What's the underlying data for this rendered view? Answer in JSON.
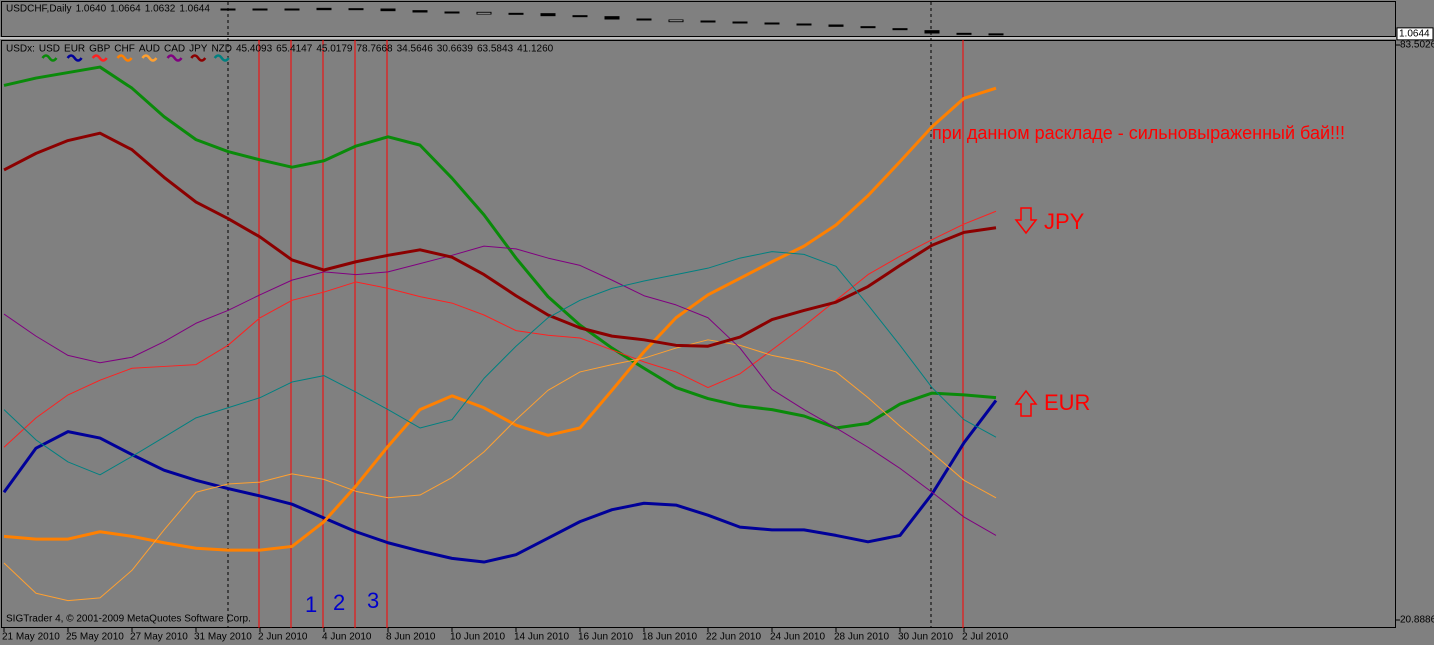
{
  "chart_data": [
    {
      "type": "candlestick",
      "title": "USDCHF,Daily",
      "legend_values": [
        "1.0640",
        "1.0664",
        "1.0632",
        "1.0644"
      ],
      "open": [
        null,
        null,
        null,
        null,
        null,
        null,
        null,
        1.139,
        1.138,
        1.139,
        1.141,
        1.138,
        1.139,
        1.134,
        1.13,
        1.124,
        1.126,
        1.125,
        1.119,
        1.116,
        1.109,
        1.101,
        1.103,
        1.1,
        1.097,
        1.094,
        1.091,
        1.086,
        1.08,
        1.074,
        1.066,
        1.064
      ],
      "close": [
        null,
        null,
        null,
        null,
        null,
        null,
        null,
        1.138,
        1.139,
        1.137,
        1.137,
        1.14,
        1.134,
        1.13,
        1.127,
        1.129,
        1.123,
        1.119,
        1.117,
        1.109,
        1.106,
        1.106,
        1.101,
        1.099,
        1.095,
        1.092,
        1.087,
        1.084,
        1.078,
        1.067,
        1.064,
        1.0644
      ],
      "up_color": "#ffffff",
      "down_color": "#000000",
      "ylim": [
        1.055,
        1.16
      ],
      "yticks": [
        {
          "value": 1.0644,
          "label": "1.0644"
        }
      ]
    },
    {
      "type": "line",
      "title": "USDx:",
      "categories": [
        "21 May 2010",
        null,
        "25 May 2010",
        null,
        "27 May 2010",
        null,
        "31 May 2010",
        null,
        "2 Jun 2010",
        null,
        "4 Jun 2010",
        null,
        "8 Jun 2010",
        null,
        "10 Jun 2010",
        null,
        "14 Jun 2010",
        null,
        "16 Jun 2010",
        null,
        "18 Jun 2010",
        null,
        "22 Jun 2010",
        null,
        "24 Jun 2010",
        null,
        "28 Jun 2010",
        null,
        "30 Jun 2010",
        null,
        "2 Jul 2010",
        null
      ],
      "series": [
        {
          "name": "USD",
          "color": "#0a8a0a",
          "width": 3,
          "values": [
            79.1,
            79.9,
            80.5,
            81.1,
            78.8,
            75.7,
            73.2,
            71.9,
            71.0,
            70.2,
            70.9,
            72.5,
            73.5,
            72.6,
            69.0,
            65.0,
            60.3,
            56.1,
            53.0,
            50.5,
            48.3,
            46.2,
            45.0,
            44.2,
            43.8,
            43.1,
            41.8,
            42.3,
            44.4,
            45.6,
            45.4,
            45.1
          ]
        },
        {
          "name": "EUR",
          "color": "#000099",
          "width": 3,
          "values": [
            34.8,
            39.6,
            41.4,
            40.7,
            38.9,
            37.2,
            36.1,
            35.2,
            34.4,
            33.5,
            32.0,
            30.5,
            29.3,
            28.4,
            27.6,
            27.2,
            28.0,
            29.8,
            31.6,
            32.9,
            33.6,
            33.4,
            32.3,
            31.0,
            30.7,
            30.7,
            30.1,
            29.4,
            30.1,
            34.6,
            40.2,
            44.8
          ]
        },
        {
          "name": "GBP",
          "color": "#ff2020",
          "width": 1,
          "values": [
            39.7,
            42.9,
            45.4,
            47.0,
            48.3,
            48.5,
            48.7,
            50.8,
            53.8,
            55.7,
            56.6,
            57.7,
            57.0,
            56.1,
            55.4,
            54.1,
            52.4,
            51.9,
            51.6,
            50.3,
            49.0,
            47.9,
            46.2,
            47.7,
            50.3,
            52.9,
            55.7,
            58.5,
            60.5,
            62.3,
            64.0,
            65.4
          ]
        },
        {
          "name": "CHF",
          "color": "#ff8000",
          "width": 3,
          "values": [
            30.0,
            29.7,
            29.7,
            30.5,
            30.0,
            29.3,
            28.7,
            28.5,
            28.5,
            28.9,
            31.6,
            35.5,
            39.8,
            43.8,
            45.3,
            44.0,
            42.1,
            41.0,
            41.8,
            45.9,
            50.1,
            53.8,
            56.3,
            58.1,
            59.9,
            61.6,
            63.9,
            67.1,
            70.8,
            74.6,
            77.7,
            78.8
          ]
        },
        {
          "name": "AUD",
          "color": "#ffa030",
          "width": 1,
          "values": [
            27.1,
            23.8,
            23.0,
            23.3,
            26.3,
            30.7,
            34.8,
            35.7,
            35.9,
            36.8,
            36.2,
            34.9,
            34.2,
            34.5,
            36.4,
            39.2,
            42.7,
            45.9,
            47.9,
            48.7,
            49.4,
            50.5,
            51.4,
            50.8,
            49.7,
            49.0,
            47.9,
            45.1,
            42.0,
            39.1,
            36.1,
            34.2
          ]
        },
        {
          "name": "CAD",
          "color": "#800080",
          "width": 1,
          "values": [
            54.2,
            51.8,
            49.7,
            48.9,
            49.5,
            51.2,
            53.2,
            54.6,
            56.3,
            57.9,
            58.8,
            58.5,
            58.8,
            59.7,
            60.6,
            61.6,
            61.3,
            60.3,
            59.5,
            57.9,
            56.2,
            55.2,
            53.8,
            50.5,
            46.0,
            43.8,
            41.8,
            39.7,
            37.4,
            34.8,
            32.1,
            30.1
          ]
        },
        {
          "name": "JPY",
          "color": "#8b0000",
          "width": 3,
          "values": [
            69.9,
            71.7,
            73.1,
            73.9,
            72.1,
            69.1,
            66.4,
            64.6,
            62.6,
            60.1,
            59.0,
            59.9,
            60.6,
            61.2,
            60.4,
            58.5,
            56.2,
            54.1,
            52.7,
            51.8,
            51.4,
            50.8,
            50.7,
            51.7,
            53.6,
            54.6,
            55.5,
            57.2,
            59.5,
            61.7,
            63.1,
            63.6
          ]
        },
        {
          "name": "NZD",
          "color": "#008080",
          "width": 1,
          "values": [
            43.8,
            40.5,
            38.1,
            36.7,
            38.7,
            40.8,
            42.9,
            44.0,
            45.1,
            46.8,
            47.5,
            45.7,
            43.8,
            41.8,
            42.7,
            47.2,
            50.7,
            53.8,
            55.7,
            57.0,
            57.8,
            58.5,
            59.2,
            60.3,
            61.0,
            60.7,
            59.4,
            55.2,
            50.8,
            46.2,
            42.7,
            40.8
          ]
        }
      ],
      "legend_values": [
        "45.4093",
        "65.4147",
        "45.0179",
        "78.7668",
        "34.5646",
        "30.6639",
        "63.5843",
        "41.1260"
      ],
      "ylim": [
        20.8886,
        83.5026
      ],
      "yticks": [
        83.5026,
        20.8886
      ],
      "annotations": [
        "при данном раскладе - сильновыраженный бай!!!",
        "JPY",
        "EUR"
      ],
      "markers": [
        "1",
        "2",
        "3"
      ],
      "credit": "SIGTrader 4, © 2001-2009 MetaQuotes Software Corp."
    }
  ]
}
